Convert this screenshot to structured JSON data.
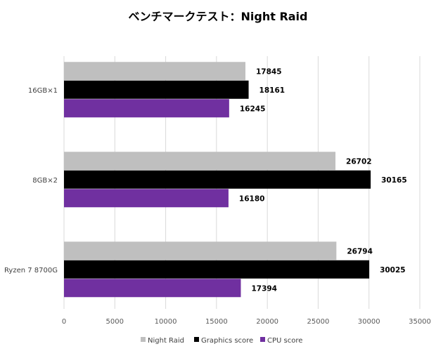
{
  "chart_data": {
    "type": "bar",
    "orientation": "horizontal",
    "title": "ベンチマークテスト：Night Raid",
    "categories": [
      "16GB×1",
      "8GB×2",
      "Ryzen 7 8700G"
    ],
    "series": [
      {
        "name": "Night Raid",
        "color": "#bfbfbf",
        "values": [
          17845,
          26702,
          26794
        ]
      },
      {
        "name": "Graphics score",
        "color": "#000000",
        "values": [
          18161,
          30165,
          30025
        ]
      },
      {
        "name": "CPU score",
        "color": "#7030a0",
        "values": [
          16245,
          16180,
          17394
        ]
      }
    ],
    "xlim": [
      0,
      35000
    ],
    "xticks": [
      "0",
      "5000",
      "10000",
      "15000",
      "20000",
      "25000",
      "30000",
      "35000"
    ],
    "xlabel": "",
    "ylabel": "",
    "grid": true,
    "legend": "bottom",
    "data_labels": true
  }
}
